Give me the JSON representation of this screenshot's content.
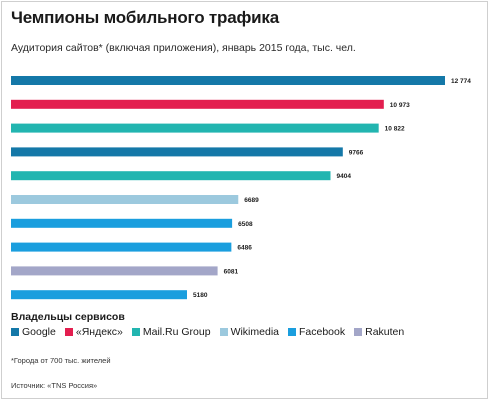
{
  "title": "Чемпионы мобильного трафика",
  "subtitle": "Аудитория сайтов* (включая приложения), январь 2015 года, тыс. чел.",
  "legend_title": "Владельцы сервисов",
  "owners": {
    "google": {
      "label": "Google",
      "color": "#1478a8"
    },
    "yandex": {
      "label": "«Яндекс»",
      "color": "#e31e4f"
    },
    "mailru": {
      "label": "Mail.Ru Group",
      "color": "#22b5b0"
    },
    "wikimedia": {
      "label": "Wikimedia",
      "color": "#9cc9de"
    },
    "facebook": {
      "label": "Facebook",
      "color": "#1a9ede"
    },
    "rakuten": {
      "label": "Rakuten",
      "color": "#a3a6c8"
    }
  },
  "footnote": "*Города от 700 тыс. жителей",
  "source": "Источник: «TNS Россия»",
  "chart_data": {
    "type": "bar",
    "orientation": "horizontal",
    "categories": [
      "",
      "",
      "",
      "",
      "",
      "",
      "",
      "",
      "",
      ""
    ],
    "values": [
      12774,
      10973,
      10822,
      9766,
      9404,
      6689,
      6508,
      6486,
      6081,
      5180
    ],
    "value_labels": [
      "12 774",
      "10 973",
      "10 822",
      "9766",
      "9404",
      "6689",
      "6508",
      "6486",
      "6081",
      "5180"
    ],
    "owners": [
      "google",
      "yandex",
      "mailru",
      "google",
      "mailru",
      "wikimedia",
      "facebook",
      "facebook",
      "rakuten",
      "facebook"
    ],
    "xlim": [
      0,
      12774
    ],
    "grid": false
  }
}
